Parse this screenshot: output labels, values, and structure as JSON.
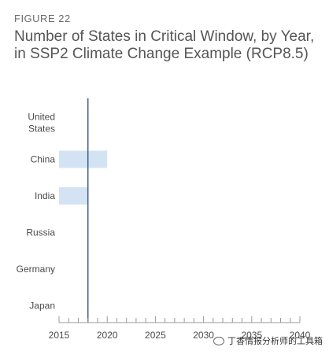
{
  "header": {
    "figure_label": "FIGURE 22",
    "title": "Number of States in Critical Window, by Year, in SSP2 Climate Change Example (RCP8.5)"
  },
  "chart_data": {
    "type": "bar",
    "orientation": "horizontal",
    "categories": [
      "United States",
      "China",
      "India",
      "Russia",
      "Germany",
      "Japan"
    ],
    "category_label_lines": [
      [
        "United",
        "States"
      ],
      [
        "China"
      ],
      [
        "India"
      ],
      [
        "Russia"
      ],
      [
        "Germany"
      ],
      [
        "Japan"
      ]
    ],
    "series": [
      {
        "ranges": [
          null,
          [
            2015,
            2020
          ],
          [
            2015,
            2018
          ],
          null,
          null,
          null
        ]
      }
    ],
    "reference_line_x": 2018,
    "xlim": [
      2015,
      2040
    ],
    "x_ticks": [
      2015,
      2020,
      2025,
      2030,
      2035,
      2040
    ],
    "x_minor_tick_step": 1,
    "xlabel": "",
    "ylabel": "",
    "grid": false,
    "colors": {
      "bar": "#d4e3f3",
      "reference_line": "#3f5f86",
      "axis": "#999999"
    }
  },
  "watermark": {
    "text": "丁香情报分析师的工具箱"
  }
}
